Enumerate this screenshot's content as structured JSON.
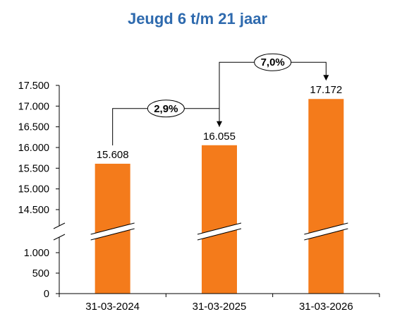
{
  "colors": {
    "bar": "#F47B1B",
    "title": "#2E6AAE",
    "axis": "#000000",
    "text": "#000000"
  },
  "chart_data": {
    "type": "bar",
    "title": "Jeugd 6 t/m 21 jaar",
    "xlabel": "",
    "ylabel": "",
    "categories": [
      "31-03-2024",
      "31-03-2025",
      "31-03-2026"
    ],
    "values": [
      15608,
      16055,
      17172
    ],
    "data_labels": [
      "15.608",
      "16.055",
      "17.172"
    ],
    "axis_break": {
      "lower_range": [
        0,
        1000
      ],
      "upper_range": [
        14500,
        17500
      ]
    },
    "lower_ticks": [
      {
        "value": 0,
        "label": "0"
      },
      {
        "value": 500,
        "label": "500"
      },
      {
        "value": 1000,
        "label": "1.000"
      }
    ],
    "upper_ticks": [
      {
        "value": 14500,
        "label": "14.500"
      },
      {
        "value": 15000,
        "label": "15.000"
      },
      {
        "value": 15500,
        "label": "15.500"
      },
      {
        "value": 16000,
        "label": "16.000"
      },
      {
        "value": 16500,
        "label": "16.500"
      },
      {
        "value": 17000,
        "label": "17.000"
      },
      {
        "value": 17500,
        "label": "17.500"
      }
    ],
    "annotations": [
      {
        "from": 0,
        "to": 1,
        "label": "2,9%"
      },
      {
        "from": 1,
        "to": 2,
        "label": "7,0%"
      }
    ],
    "grid": false,
    "legend": "none"
  }
}
